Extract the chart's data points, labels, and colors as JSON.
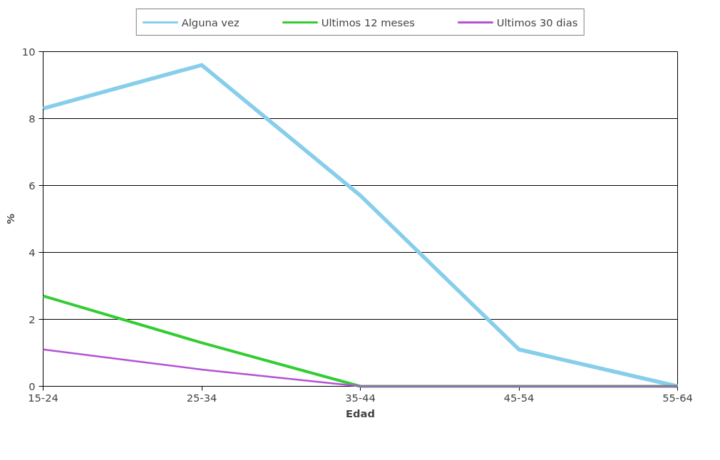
{
  "chart_data": {
    "type": "line",
    "xlabel": "Edad",
    "ylabel": "%",
    "categories": [
      "15-24",
      "25-34",
      "35-44",
      "45-54",
      "55-64"
    ],
    "series": [
      {
        "name": "Alguna vez",
        "color": "#87ceeb",
        "values": [
          8.3,
          9.6,
          5.7,
          1.1,
          0
        ]
      },
      {
        "name": "Ultimos 12 meses",
        "color": "#33cc33",
        "values": [
          2.7,
          1.3,
          0,
          0,
          0
        ]
      },
      {
        "name": "Ultimos 30 dias",
        "color": "#b452d6",
        "values": [
          1.1,
          0.5,
          0,
          0,
          0
        ]
      }
    ],
    "ylim": [
      0,
      10
    ],
    "yticks": [
      0,
      2,
      4,
      6,
      8,
      10
    ],
    "grid": "y",
    "legend": "top",
    "marker": "none",
    "line_style": "solid"
  }
}
